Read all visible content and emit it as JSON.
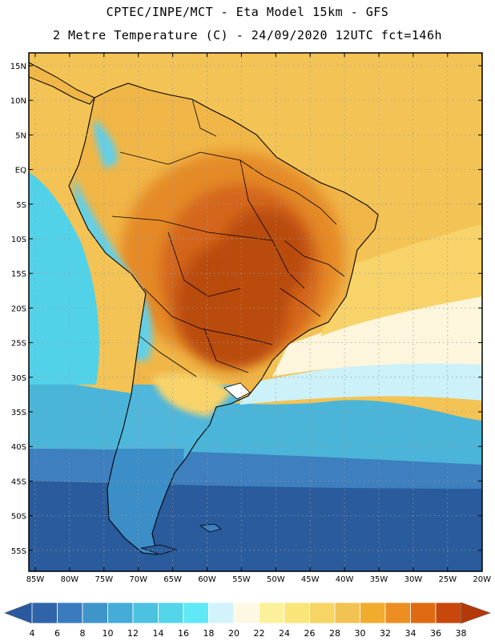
{
  "title_line_1": "CPTEC/INPE/MCT -  Eta Model 15km - GFS",
  "title_line_2": "2 Metre Temperature (C) - 24/09/2020 12UTC fct=146h",
  "lat_labels": [
    "15N",
    "10N",
    "5N",
    "EQ",
    "5S",
    "10S",
    "15S",
    "20S",
    "25S",
    "30S",
    "35S",
    "40S",
    "45S",
    "50S",
    "55S"
  ],
  "lon_labels": [
    "85W",
    "80W",
    "75W",
    "70W",
    "65W",
    "60W",
    "55W",
    "50W",
    "45W",
    "40W",
    "35W",
    "30W",
    "25W",
    "20W"
  ],
  "colorbar": {
    "labels": [
      "4",
      "6",
      "8",
      "10",
      "12",
      "14",
      "16",
      "18",
      "20",
      "22",
      "24",
      "26",
      "28",
      "30",
      "32",
      "34",
      "36",
      "38"
    ],
    "low_color": "#2a5a9e",
    "high_color": "#b33a08",
    "colors": [
      "#2f64a8",
      "#3a7bbd",
      "#3f95c9",
      "#44acd6",
      "#4cc2e0",
      "#53d6ea",
      "#5fe8f5",
      "#d2f3fb",
      "#fcf8e2",
      "#fbf19a",
      "#fae57a",
      "#f6d565",
      "#f2c352",
      "#f1ac2d",
      "#ec8e22",
      "#e06a12",
      "#c8470a"
    ]
  },
  "map_colors": {
    "ocean_south_deep": "#2a5b9c",
    "ocean_south": "#3d7fbf",
    "ocean_mid": "#4ab5d9",
    "ocean_warm_cyan": "#52d2e8",
    "ocean_pale": "#cdf1f8",
    "ocean_cream": "#fdf6dd",
    "ocean_yellow": "#f7d36a",
    "ocean_tropical": "#f3c355",
    "land_warm": "#f0b647",
    "land_hot": "#e58a27",
    "land_hotter": "#d4661a",
    "land_hottest": "#b94b0c",
    "andes_cool": "#63cfe6",
    "andes_cold": "#3b8ec8",
    "patagonia": "#4fb6dc"
  }
}
